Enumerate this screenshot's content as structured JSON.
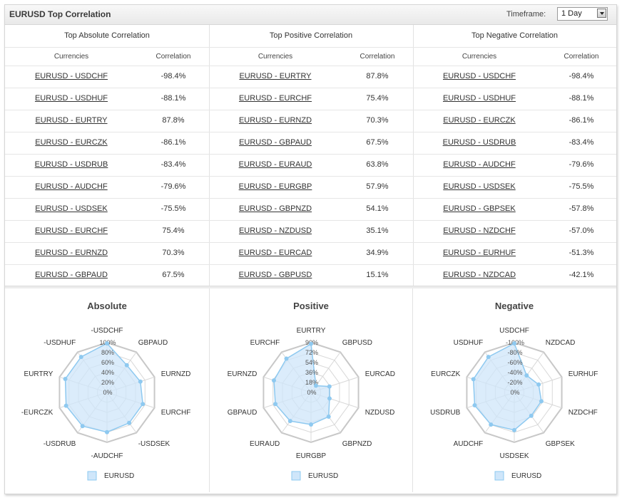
{
  "header": {
    "title": "EURUSD Top Correlation",
    "timeframe_label": "Timeframe:",
    "timeframe_value": "1 Day"
  },
  "table": {
    "sub_headers": {
      "currencies": "Currencies",
      "correlation": "Correlation"
    },
    "columns": [
      {
        "title": "Top Absolute Correlation",
        "rows": [
          {
            "pair": "EURUSD - USDCHF",
            "value": "-98.4%"
          },
          {
            "pair": "EURUSD - USDHUF",
            "value": "-88.1%"
          },
          {
            "pair": "EURUSD - EURTRY",
            "value": "87.8%"
          },
          {
            "pair": "EURUSD - EURCZK",
            "value": "-86.1%"
          },
          {
            "pair": "EURUSD - USDRUB",
            "value": "-83.4%"
          },
          {
            "pair": "EURUSD - AUDCHF",
            "value": "-79.6%"
          },
          {
            "pair": "EURUSD - USDSEK",
            "value": "-75.5%"
          },
          {
            "pair": "EURUSD - EURCHF",
            "value": "75.4%"
          },
          {
            "pair": "EURUSD - EURNZD",
            "value": "70.3%"
          },
          {
            "pair": "EURUSD - GBPAUD",
            "value": "67.5%"
          }
        ]
      },
      {
        "title": "Top Positive Correlation",
        "rows": [
          {
            "pair": "EURUSD - EURTRY",
            "value": "87.8%"
          },
          {
            "pair": "EURUSD - EURCHF",
            "value": "75.4%"
          },
          {
            "pair": "EURUSD - EURNZD",
            "value": "70.3%"
          },
          {
            "pair": "EURUSD - GBPAUD",
            "value": "67.5%"
          },
          {
            "pair": "EURUSD - EURAUD",
            "value": "63.8%"
          },
          {
            "pair": "EURUSD - EURGBP",
            "value": "57.9%"
          },
          {
            "pair": "EURUSD - GBPNZD",
            "value": "54.1%"
          },
          {
            "pair": "EURUSD - NZDUSD",
            "value": "35.1%"
          },
          {
            "pair": "EURUSD - EURCAD",
            "value": "34.9%"
          },
          {
            "pair": "EURUSD - GBPUSD",
            "value": "15.1%"
          }
        ]
      },
      {
        "title": "Top Negative Correlation",
        "rows": [
          {
            "pair": "EURUSD - USDCHF",
            "value": "-98.4%"
          },
          {
            "pair": "EURUSD - USDHUF",
            "value": "-88.1%"
          },
          {
            "pair": "EURUSD - EURCZK",
            "value": "-86.1%"
          },
          {
            "pair": "EURUSD - USDRUB",
            "value": "-83.4%"
          },
          {
            "pair": "EURUSD - AUDCHF",
            "value": "-79.6%"
          },
          {
            "pair": "EURUSD - USDSEK",
            "value": "-75.5%"
          },
          {
            "pair": "EURUSD - GBPSEK",
            "value": "-57.8%"
          },
          {
            "pair": "EURUSD - NZDCHF",
            "value": "-57.0%"
          },
          {
            "pair": "EURUSD - EURHUF",
            "value": "-51.3%"
          },
          {
            "pair": "EURUSD - NZDCAD",
            "value": "-42.1%"
          }
        ]
      }
    ]
  },
  "colors": {
    "fill": "#cfe6fa",
    "stroke": "#8ec9f0",
    "point": "#8ec9f0",
    "grid": "#cccccc"
  },
  "chart_data": [
    {
      "type": "radar",
      "title": "Absolute",
      "axes": [
        "-USDCHF",
        "GBPAUD",
        "EURNZD",
        "EURCHF",
        "-USDSEK",
        "-AUDCHF",
        "-USDRUB",
        "-EURCZK",
        "EURTRY",
        "-USDHUF"
      ],
      "tick_labels": [
        "0%",
        "20%",
        "40%",
        "60%",
        "80%",
        "100%"
      ],
      "range": [
        0,
        100
      ],
      "series": [
        {
          "name": "EURUSD",
          "values": [
            98.4,
            67.5,
            70.3,
            75.4,
            75.5,
            79.6,
            83.4,
            86.1,
            87.8,
            88.1
          ]
        }
      ],
      "legend": "bottom-center"
    },
    {
      "type": "radar",
      "title": "Positive",
      "axes": [
        "EURTRY",
        "GBPUSD",
        "EURCAD",
        "NZDUSD",
        "GBPNZD",
        "EURGBP",
        "EURAUD",
        "GBPAUD",
        "EURNZD",
        "EURCHF"
      ],
      "tick_labels": [
        "0%",
        "18%",
        "36%",
        "54%",
        "72%",
        "90%"
      ],
      "range": [
        0,
        90
      ],
      "series": [
        {
          "name": "EURUSD",
          "values": [
            87.8,
            15.1,
            34.9,
            35.1,
            54.1,
            57.9,
            63.8,
            67.5,
            70.3,
            75.4
          ]
        }
      ],
      "legend": "bottom-center"
    },
    {
      "type": "radar",
      "title": "Negative",
      "axes": [
        "USDCHF",
        "NZDCAD",
        "EURHUF",
        "NZDCHF",
        "GBPSEK",
        "USDSEK",
        "AUDCHF",
        "USDRUB",
        "EURCZK",
        "USDHUF"
      ],
      "tick_labels": [
        "0%",
        "-20%",
        "-40%",
        "-60%",
        "-80%",
        "-100%"
      ],
      "range": [
        0,
        -100
      ],
      "series": [
        {
          "name": "EURUSD",
          "values": [
            -98.4,
            -42.1,
            -51.3,
            -57.0,
            -57.8,
            -75.5,
            -79.6,
            -83.4,
            -86.1,
            -88.1
          ]
        }
      ],
      "legend": "bottom-center"
    }
  ]
}
